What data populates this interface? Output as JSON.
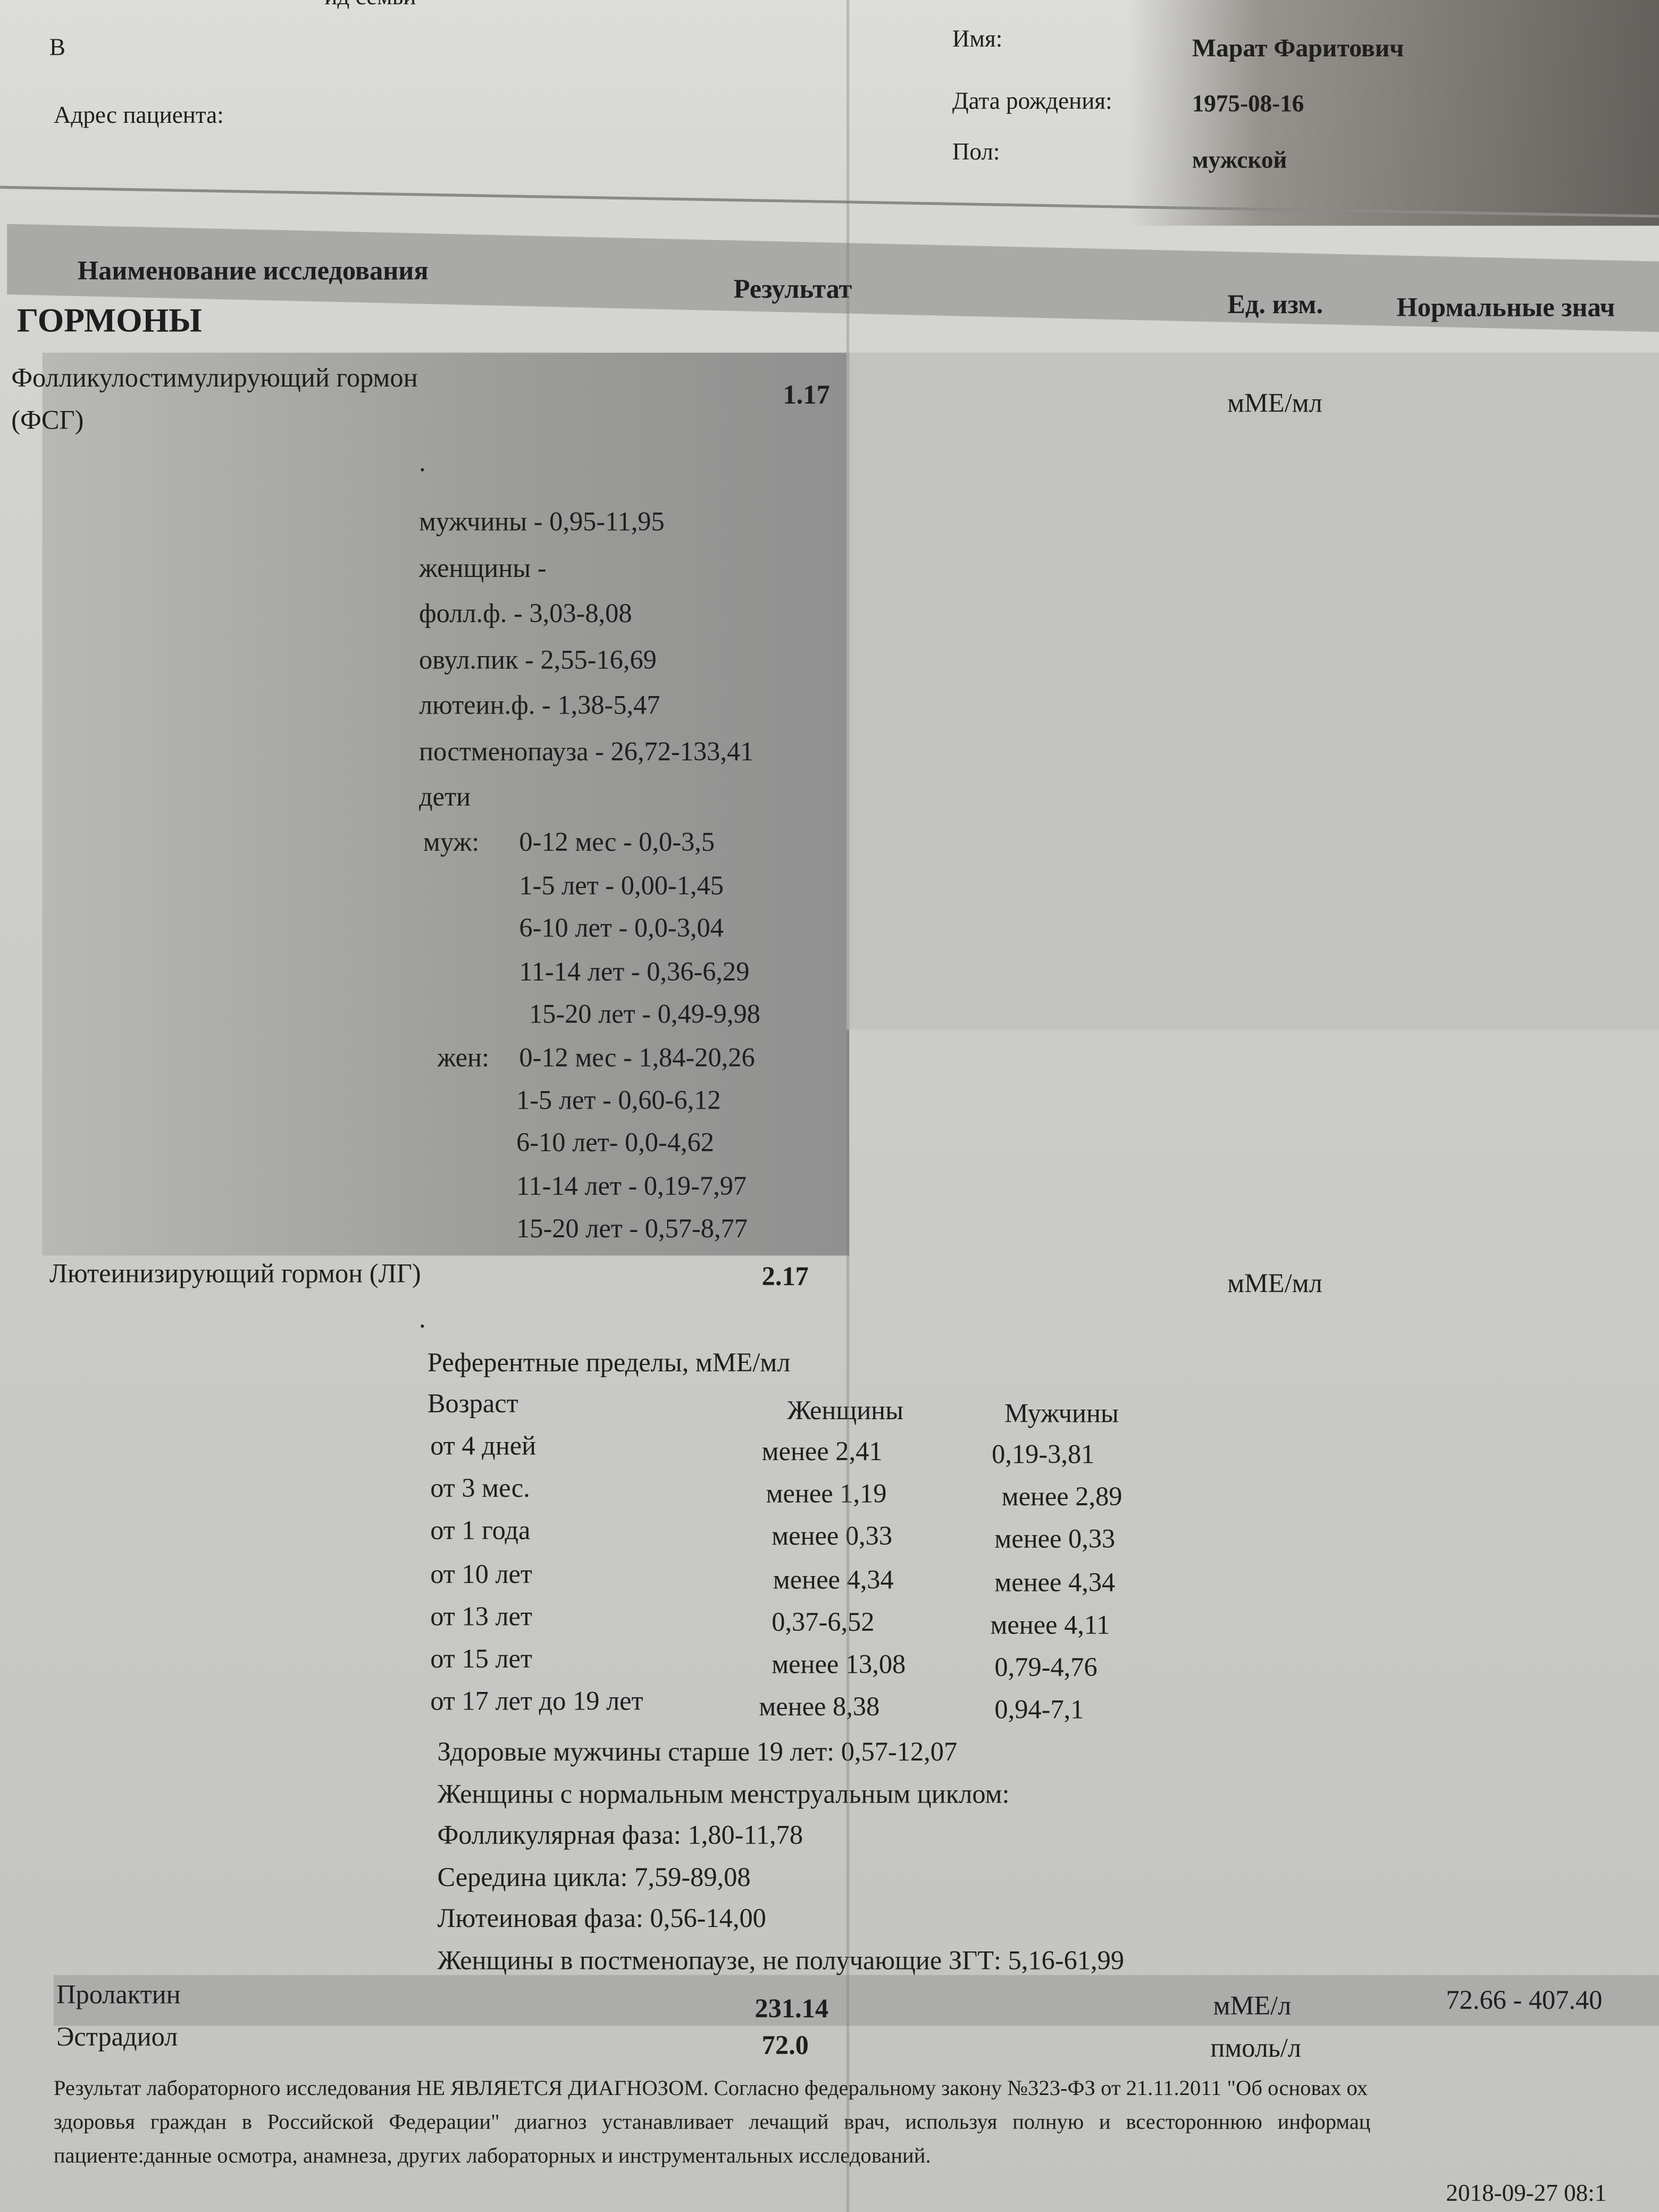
{
  "patient": {
    "top_cut_text": "ид семьи",
    "v_label": "В",
    "address_label": "Адрес пациента:",
    "name_label": "Имя:",
    "name_value": "Марат Фаритович",
    "dob_label": "Дата рождения:",
    "dob_value": "1975-08-16",
    "sex_label": "Пол:",
    "sex_value": "мужской"
  },
  "table_header": {
    "name": "Наименование исследования",
    "result": "Результат",
    "unit": "Ед. изм.",
    "normal": "Нормальные знач"
  },
  "section": "ГОРМОНЫ",
  "fsh": {
    "name_line1": "Фолликулостимулирующий гормон",
    "name_line2": "(ФСГ)",
    "result": "1.17",
    "unit": "мМЕ/мл",
    "dot": ".",
    "ref_lines": [
      "мужчины - 0,95-11,95",
      "женщины -",
      "фолл.ф. - 3,03-8,08",
      "овул.пик - 2,55-16,69",
      "лютеин.ф. - 1,38-5,47",
      "постменопауза - 26,72-133,41",
      "дети"
    ],
    "children_male_label": "муж:",
    "children_male": [
      "0-12 мес - 0,0-3,5",
      "1-5 лет - 0,00-1,45",
      "6-10 лет - 0,0-3,04",
      "11-14 лет - 0,36-6,29",
      "15-20 лет - 0,49-9,98"
    ],
    "children_female_label": "жен:",
    "children_female": [
      "0-12 мес - 1,84-20,26",
      "1-5 лет - 0,60-6,12",
      "6-10 лет- 0,0-4,62",
      "11-14 лет - 0,19-7,97",
      "15-20 лет - 0,57-8,77"
    ]
  },
  "lh": {
    "name": "Лютеинизирующий гормон (ЛГ)",
    "result": "2.17",
    "unit": "мМЕ/мл",
    "dot": ".",
    "ref_title": "Референтные пределы, мМЕ/мл",
    "col_age": "Возраст",
    "col_women": "Женщины",
    "col_men": "Мужчины",
    "rows": [
      {
        "age": "от 4 дней",
        "women": "менее 2,41",
        "men": "0,19-3,81"
      },
      {
        "age": "от 3 мес.",
        "women": "менее 1,19",
        "men": "менее 2,89"
      },
      {
        "age": "от 1 года",
        "women": "менее 0,33",
        "men": "менее 0,33"
      },
      {
        "age": "от 10 лет",
        "women": "менее 4,34",
        "men": "менее 4,34"
      },
      {
        "age": "от 13 лет",
        "women": "0,37-6,52",
        "men": "менее 4,11"
      },
      {
        "age": "от 15 лет",
        "women": "менее 13,08",
        "men": "0,79-4,76"
      },
      {
        "age": "от 17 лет до 19 лет",
        "women": "менее 8,38",
        "men": "0,94-7,1"
      }
    ],
    "notes": [
      "Здоровые мужчины старше 19 лет: 0,57-12,07",
      "Женщины с нормальным менструальным циклом:",
      "Фолликулярная фаза: 1,80-11,78",
      "Середина цикла: 7,59-89,08",
      "Лютеиновая фаза: 0,56-14,00",
      "Женщины в постменопаузе, не получающие ЗГТ: 5,16-61,99"
    ]
  },
  "prolactin": {
    "name": "Пролактин",
    "result": "231.14",
    "unit": "мМЕ/л",
    "normal": "72.66 - 407.40"
  },
  "estradiol": {
    "name": "Эстрадиол",
    "result": "72.0",
    "unit": "пмоль/л"
  },
  "footer": {
    "line1": "Результат лабораторного исследования НЕ ЯВЛЯЕТСЯ ДИАГНОЗОМ. Согласно федеральному закону №323-ФЗ от 21.11.2011 \"Об основах ох",
    "line2": "здоровья граждан в Российской Федерации\" диагноз устанавливает лечащий врач, используя полную и всестороннюю информац",
    "line3": "пациенте:данные осмотра, анамнеза, других лабораторных и инструментальных исследований.",
    "datetime": "2018-09-27 08:1"
  }
}
